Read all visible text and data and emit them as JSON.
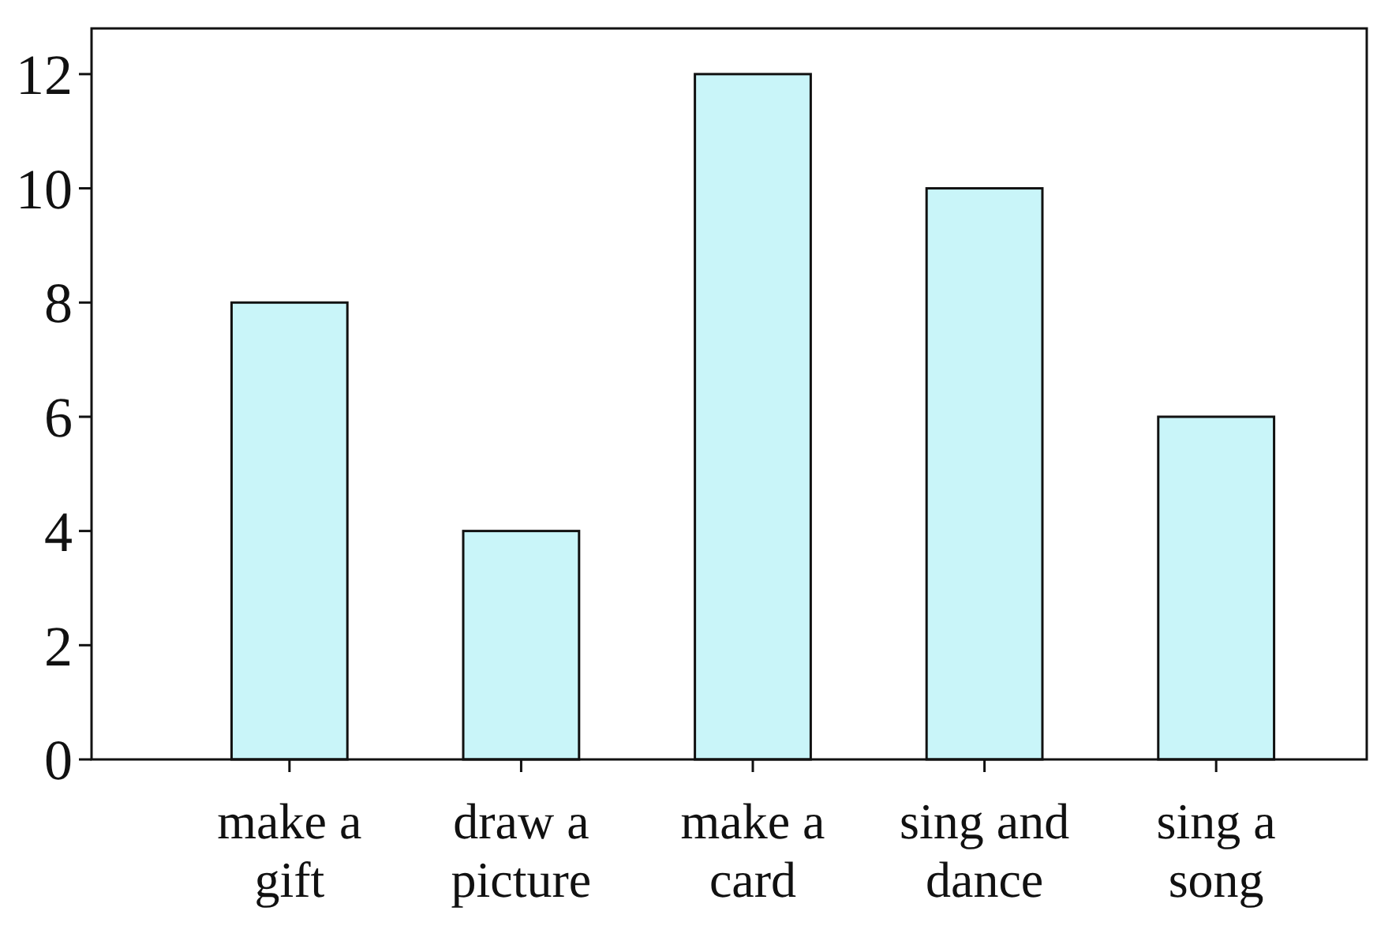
{
  "chart_data": {
    "type": "bar",
    "categories": [
      "make a gift",
      "draw a picture",
      "make a card",
      "sing and dance",
      "sing a song"
    ],
    "values": [
      8,
      4,
      12,
      10,
      6
    ],
    "color": "#c9f5f9",
    "ylim": [
      0,
      12.8
    ],
    "yticks": [
      0,
      2,
      4,
      6,
      8,
      10,
      12
    ],
    "grid": false
  }
}
